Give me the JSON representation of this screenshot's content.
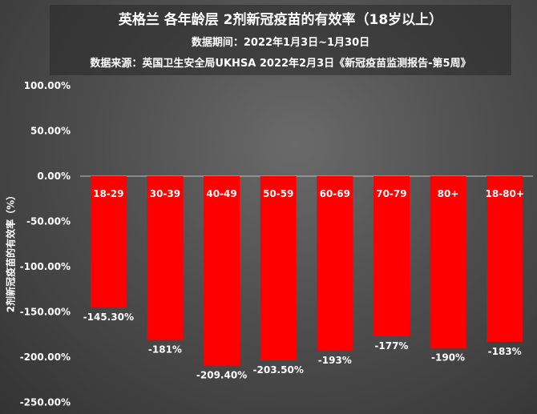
{
  "chart_data": {
    "type": "bar",
    "title": "英格兰 各年龄层 2剂新冠疫苗的有效率（18岁以上）",
    "subtitle": "数据期间：2022年1月3日~1月30日",
    "source": "数据来源：英国卫生安全局UKHSA 2022年2月3日《新冠疫苗监测报告-第5周》",
    "ylabel": "2剂新冠疫苗的有效率（%）",
    "xlabel": "",
    "categories": [
      "18-29",
      "30-39",
      "40-49",
      "50-59",
      "60-69",
      "70-79",
      "80+",
      "18-80+"
    ],
    "values": [
      -145.3,
      -181,
      -209.4,
      -203.5,
      -193,
      -177,
      -190,
      -183
    ],
    "value_labels": [
      "-145.30%",
      "-181%",
      "-209.40%",
      "-203.50%",
      "-193%",
      "-177%",
      "-190%",
      "-183%"
    ],
    "ylim": [
      -250,
      100
    ],
    "yticks": [
      100,
      50,
      0,
      -50,
      -100,
      -150,
      -200,
      -250
    ],
    "ytick_labels": [
      "100.00%",
      "50.00%",
      "0.00%",
      "-50.00%",
      "-100.00%",
      "-150.00%",
      "-200.00%",
      "-250.00%"
    ],
    "bar_color": "#ff0000",
    "grid": false,
    "legend": "none"
  }
}
